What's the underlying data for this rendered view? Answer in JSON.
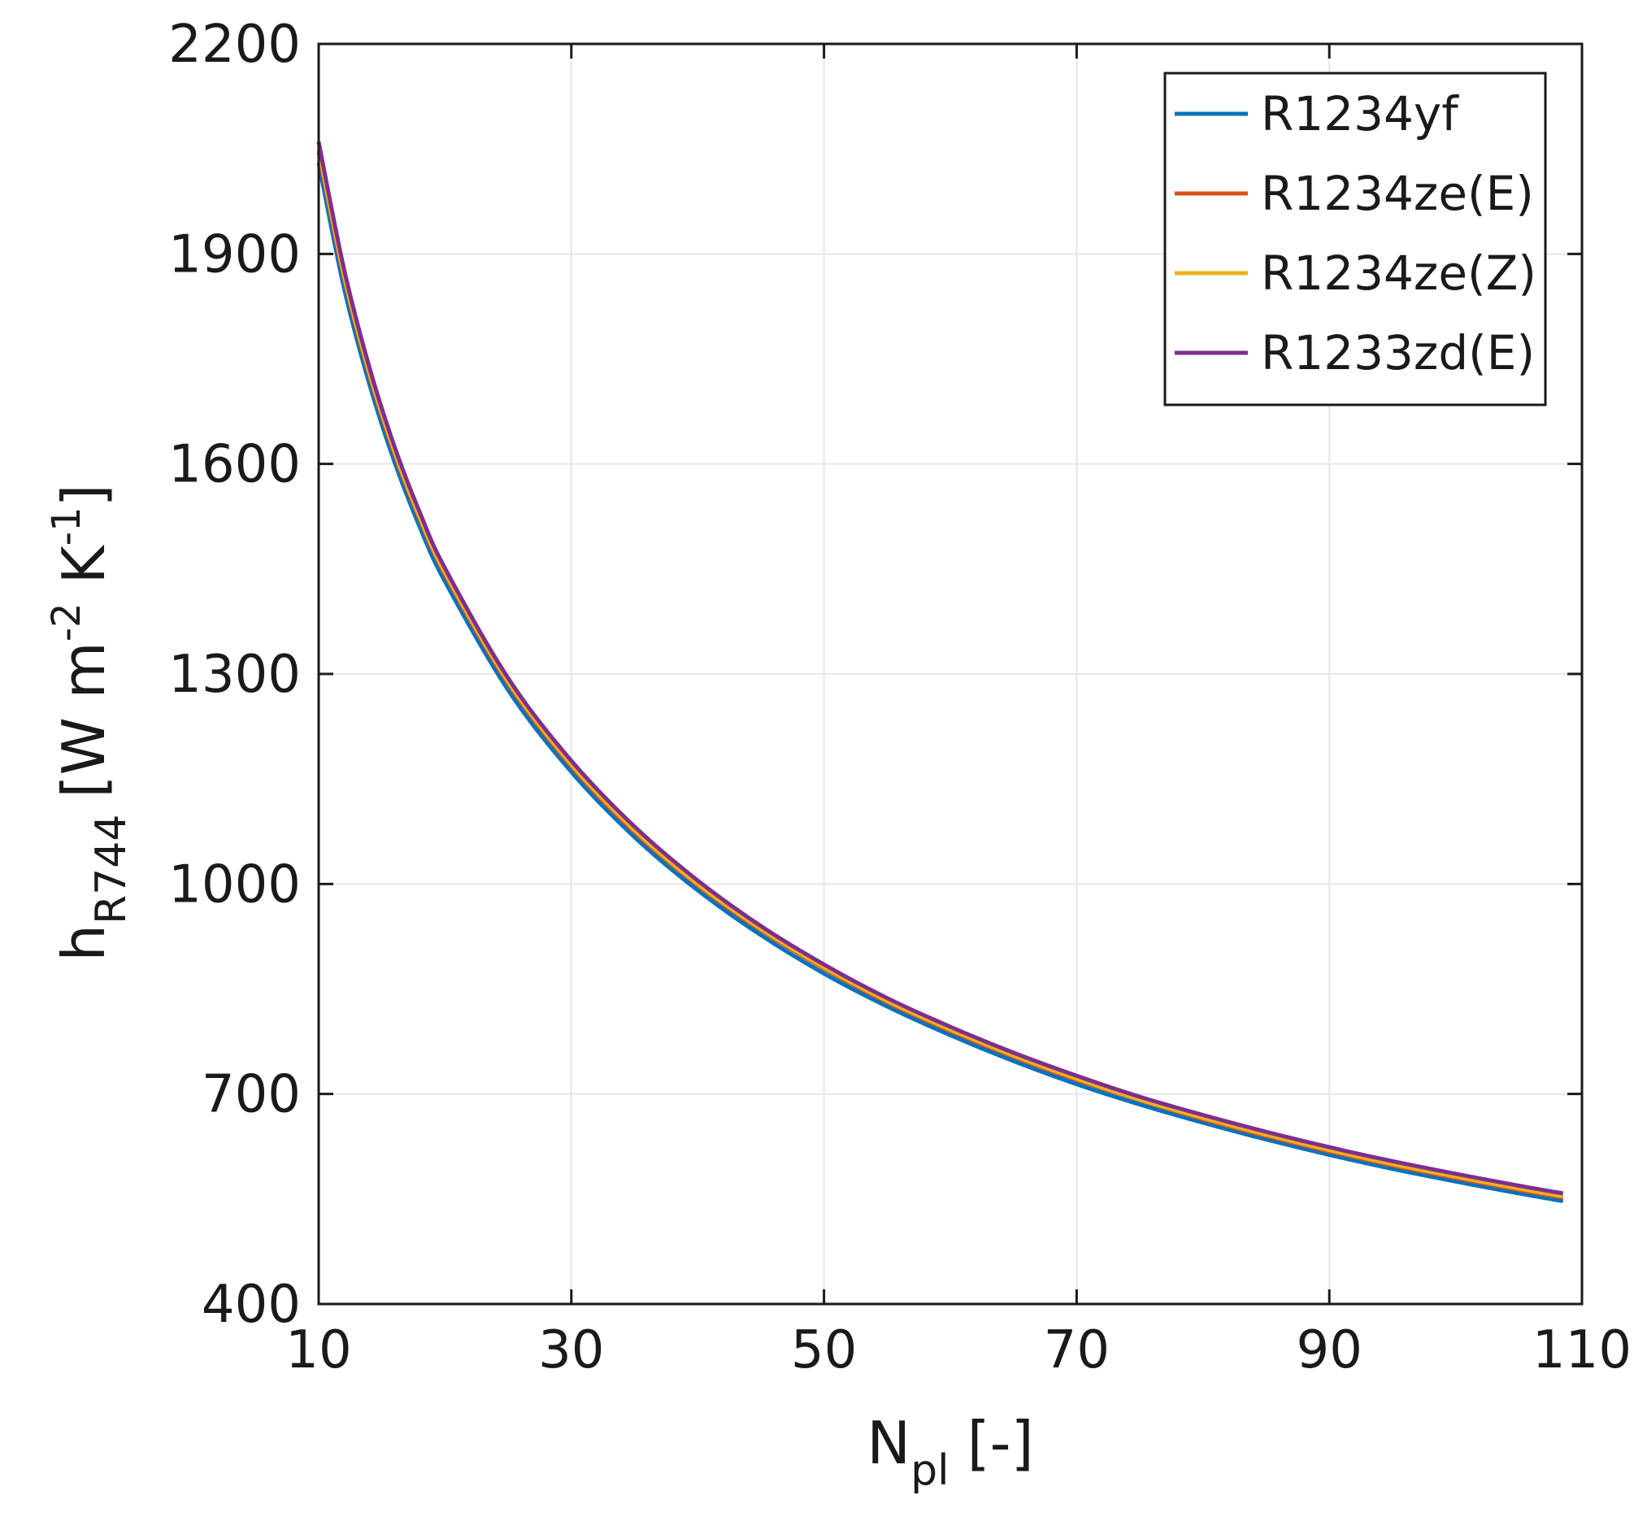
{
  "chart_data": {
    "type": "line",
    "title": "",
    "xlabel": {
      "main": "N",
      "sub": "pl",
      "unit": "[-]"
    },
    "ylabel": {
      "main": "h",
      "sub": "R744",
      "unit_parts": [
        "[W m",
        "-2",
        " K",
        "-1",
        "]"
      ]
    },
    "xlim": [
      10,
      110
    ],
    "ylim": [
      400,
      2200
    ],
    "xticks": [
      10,
      30,
      50,
      70,
      90,
      110
    ],
    "yticks": [
      400,
      700,
      1000,
      1300,
      1600,
      1900,
      2200
    ],
    "grid": true,
    "legend_position": "top-right",
    "x": [
      10,
      12,
      14,
      16,
      18,
      20,
      25,
      30,
      35,
      40,
      45,
      50,
      55,
      60,
      65,
      70,
      75,
      80,
      85,
      90,
      95,
      100,
      105,
      108.5
    ],
    "series": [
      {
        "name": "R1234yf",
        "color": "#0072BD",
        "values": [
          2030,
          1852,
          1715,
          1603,
          1510,
          1432,
          1277,
          1160,
          1067,
          991,
          927,
          872,
          825,
          784,
          747,
          714,
          685,
          659,
          635,
          613,
          593,
          575,
          558,
          547
        ]
      },
      {
        "name": "R1234ze(E)",
        "color": "#D95319",
        "values": [
          2045,
          1866,
          1727,
          1614,
          1521,
          1442,
          1286,
          1168,
          1074,
          998,
          934,
          879,
          831,
          790,
          753,
          720,
          691,
          664,
          640,
          618,
          598,
          580,
          563,
          552
        ]
      },
      {
        "name": "R1234ze(Z)",
        "color": "#EDB120",
        "values": [
          2050,
          1870,
          1731,
          1618,
          1524,
          1445,
          1289,
          1171,
          1077,
          1000,
          936,
          881,
          833,
          792,
          755,
          722,
          692,
          666,
          642,
          620,
          600,
          582,
          565,
          554
        ]
      },
      {
        "name": "R1233zd(E)",
        "color": "#7E2F8E",
        "values": [
          2060,
          1879,
          1739,
          1625,
          1531,
          1451,
          1294,
          1176,
          1082,
          1005,
          940,
          885,
          837,
          796,
          759,
          726,
          696,
          670,
          646,
          624,
          604,
          586,
          569,
          558
        ]
      }
    ]
  }
}
